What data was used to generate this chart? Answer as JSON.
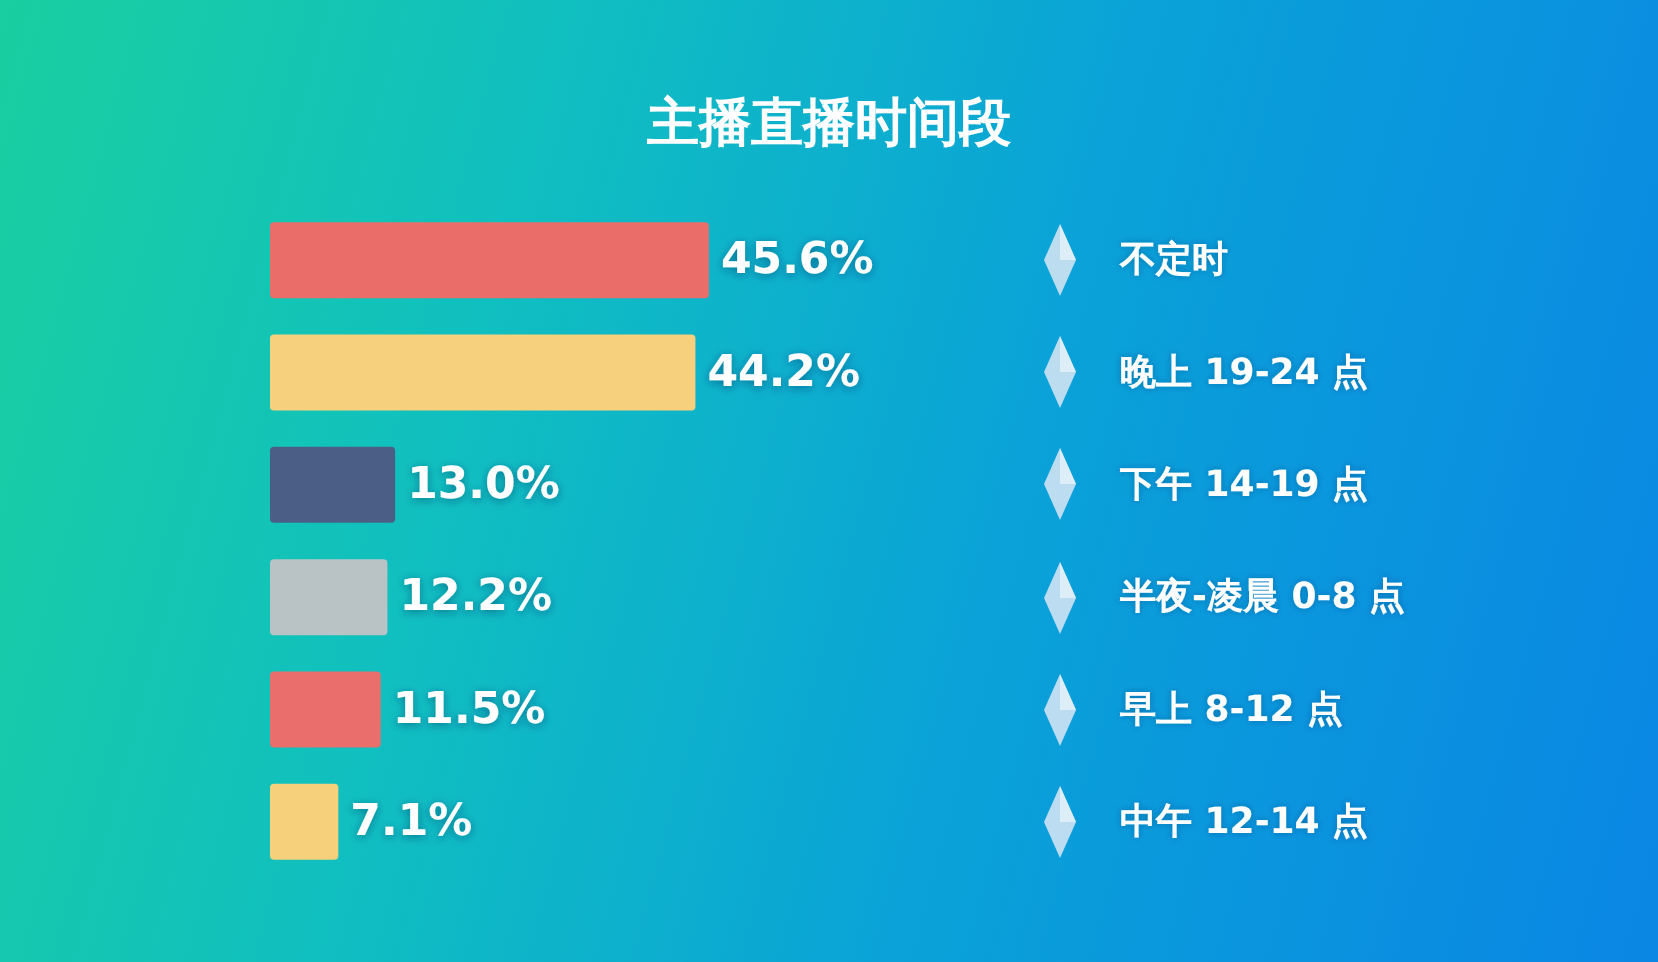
{
  "chart_data": {
    "type": "bar",
    "orientation": "horizontal",
    "title": "主播直播时间段",
    "categories": [
      "不定时",
      "晚上 19-24 点",
      "下午 14-19 点",
      "半夜-凌晨 0-8 点",
      "早上 8-12 点",
      "中午 12-14 点"
    ],
    "values": [
      45.6,
      44.2,
      13.0,
      12.2,
      11.5,
      7.1
    ],
    "value_labels": [
      "45.6%",
      "44.2%",
      "13.0%",
      "12.2%",
      "11.5%",
      "7.1%"
    ],
    "colors": [
      "#ea6d6a",
      "#f6d07c",
      "#4b5f86",
      "#b9c2c4",
      "#ea6f6c",
      "#f6d07a"
    ],
    "tick_labels": "y",
    "grid": false
  }
}
